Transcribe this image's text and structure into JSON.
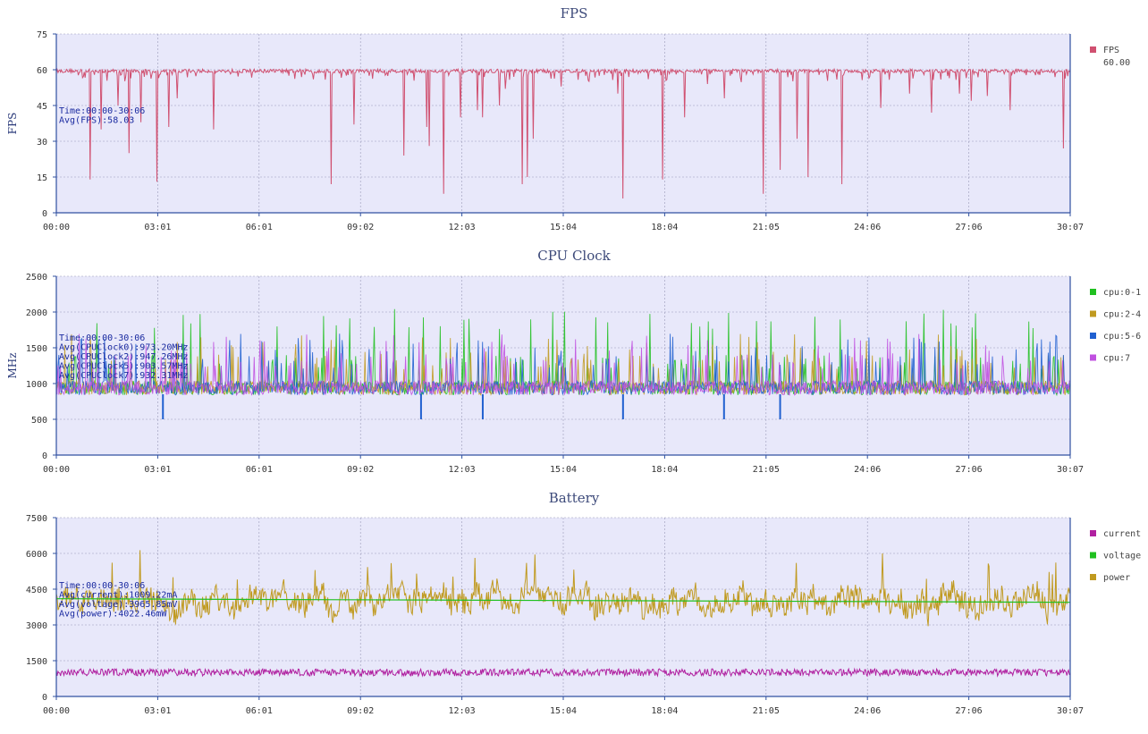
{
  "chart_data": [
    {
      "type": "line",
      "title": "FPS",
      "ylabel": "FPS",
      "ylim": [
        0,
        75
      ],
      "yticks": [
        "0",
        "15",
        "30",
        "45",
        "60",
        "75"
      ],
      "xticks": [
        "00:00",
        "03:01",
        "06:01",
        "09:02",
        "12:03",
        "15:04",
        "18:04",
        "21:05",
        "24:06",
        "27:06",
        "30:07"
      ],
      "xlim_seconds": [
        0,
        1807
      ],
      "grid": true,
      "legend_position": "right",
      "legend": [
        {
          "name": "FPS",
          "color": "#d05070",
          "value": "60.00"
        }
      ],
      "stats": [
        "Time:00:00-30:06",
        "Avg(FPS):58.03"
      ],
      "series": [
        {
          "name": "FPS",
          "color": "#d05070",
          "baseline": 59.5,
          "dips": [
            [
              60,
              14
            ],
            [
              80,
              35
            ],
            [
              110,
              45
            ],
            [
              130,
              25
            ],
            [
              150,
              38
            ],
            [
              180,
              13
            ],
            [
              200,
              36
            ],
            [
              215,
              48
            ],
            [
              280,
              35
            ],
            [
              490,
              12
            ],
            [
              530,
              37
            ],
            [
              620,
              24
            ],
            [
              660,
              36
            ],
            [
              665,
              28
            ],
            [
              690,
              8
            ],
            [
              720,
              40
            ],
            [
              750,
              43
            ],
            [
              760,
              40
            ],
            [
              790,
              45
            ],
            [
              800,
              52
            ],
            [
              830,
              12
            ],
            [
              840,
              15
            ],
            [
              850,
              31
            ],
            [
              900,
              53
            ],
            [
              1000,
              50
            ],
            [
              1010,
              6
            ],
            [
              1080,
              14
            ],
            [
              1120,
              40
            ],
            [
              1160,
              54
            ],
            [
              1190,
              48
            ],
            [
              1260,
              8
            ],
            [
              1290,
              18
            ],
            [
              1320,
              31
            ],
            [
              1340,
              15
            ],
            [
              1400,
              12
            ],
            [
              1470,
              44
            ],
            [
              1520,
              50
            ],
            [
              1560,
              42
            ],
            [
              1610,
              50
            ],
            [
              1630,
              47
            ],
            [
              1660,
              49
            ],
            [
              1700,
              43
            ],
            [
              1795,
              27
            ]
          ]
        }
      ]
    },
    {
      "type": "line",
      "title": "CPU Clock",
      "ylabel": "MHz",
      "ylim": [
        0,
        2500
      ],
      "yticks": [
        "0",
        "500",
        "1000",
        "1500",
        "2000",
        "2500"
      ],
      "xticks": [
        "00:00",
        "03:01",
        "06:01",
        "09:02",
        "12:03",
        "15:04",
        "18:04",
        "21:05",
        "24:06",
        "27:06",
        "30:07"
      ],
      "xlim_seconds": [
        0,
        1807
      ],
      "grid": true,
      "legend_position": "right",
      "legend": [
        {
          "name": "cpu:0-1",
          "color": "#20c020"
        },
        {
          "name": "cpu:2-4",
          "color": "#c09a20"
        },
        {
          "name": "cpu:5-6",
          "color": "#2060d0"
        },
        {
          "name": "cpu:7",
          "color": "#c050e0"
        }
      ],
      "stats": [
        "Time:00:00-30:06",
        "Avg(CPUClock0):973.20MHz",
        "Avg(CPUClock2):947.26MHz",
        "Avg(CPUClock5):903.57MHz",
        "Avg(CPUClock7):932.31MHz"
      ],
      "series": [
        {
          "name": "cpu:0-1",
          "color": "#20c020",
          "baseline": 900,
          "spike": 2050
        },
        {
          "name": "cpu:2-4",
          "color": "#c09a20",
          "baseline": 900,
          "spike": 1700
        },
        {
          "name": "cpu:5-6",
          "color": "#2060d0",
          "baseline": 900,
          "spike": 1700
        },
        {
          "name": "cpu:7",
          "color": "#c050e0",
          "baseline": 900,
          "spike": 1700
        }
      ],
      "low_dips_seconds": [
        190,
        650,
        760,
        1010,
        1190,
        1290
      ]
    },
    {
      "type": "line",
      "title": "Battery",
      "ylabel": "",
      "ylim": [
        0,
        7500
      ],
      "yticks": [
        "0",
        "1500",
        "3000",
        "4500",
        "6000",
        "7500"
      ],
      "xticks": [
        "00:00",
        "03:01",
        "06:01",
        "09:02",
        "12:03",
        "15:04",
        "18:04",
        "21:05",
        "24:06",
        "27:06",
        "30:07"
      ],
      "xlim_seconds": [
        0,
        1807
      ],
      "grid": true,
      "legend_position": "right",
      "legend": [
        {
          "name": "current",
          "color": "#b020a0"
        },
        {
          "name": "voltage",
          "color": "#20c020"
        },
        {
          "name": "power",
          "color": "#c09a20"
        }
      ],
      "stats": [
        "Time:00:00-30:06",
        "Avg(current):1009.22mA",
        "Avg(voltage):3965.85mV",
        "Avg(power):4022.46mW"
      ],
      "series": [
        {
          "name": "current",
          "color": "#b020a0",
          "mean": 1009
        },
        {
          "name": "voltage",
          "color": "#20c020",
          "start": 4100,
          "end": 3950
        },
        {
          "name": "power",
          "color": "#c09a20",
          "mean": 4022
        }
      ]
    }
  ]
}
